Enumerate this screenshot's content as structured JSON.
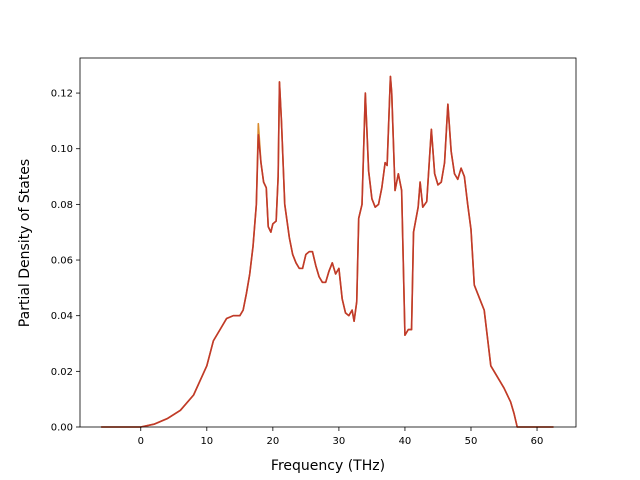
{
  "chart_data": {
    "type": "line",
    "x_label": "Frequency (THz)",
    "y_label": "Partial Density of States",
    "xlim": [
      -9.2,
      65.9
    ],
    "ylim": [
      0,
      0.1326
    ],
    "xticks": [
      0,
      10,
      20,
      30,
      40,
      50,
      60
    ],
    "yticks": [
      {
        "value": 0,
        "label": "0.00"
      },
      {
        "value": 0.02,
        "label": "0.02"
      },
      {
        "value": 0.04,
        "label": "0.04"
      },
      {
        "value": 0.06,
        "label": "0.06"
      },
      {
        "value": 0.08,
        "label": "0.08"
      },
      {
        "value": 0.1,
        "label": "0.10"
      },
      {
        "value": 0.12,
        "label": "0.12"
      }
    ],
    "x": [
      -6,
      0,
      2,
      4,
      6,
      8,
      10,
      11,
      12,
      13,
      14,
      15,
      15.5,
      16,
      16.5,
      17,
      17.5,
      17.8,
      18.2,
      18.6,
      19,
      19.3,
      19.7,
      20,
      20.5,
      20.8,
      21,
      21.3,
      21.8,
      22.5,
      23,
      23.5,
      24,
      24.5,
      25,
      25.5,
      26,
      26.5,
      27,
      27.5,
      28,
      28.5,
      29,
      29.5,
      30,
      30.5,
      31,
      31.5,
      32,
      32.3,
      32.7,
      33,
      33.5,
      34,
      34.5,
      35,
      35.5,
      36,
      36.5,
      37,
      37.3,
      37.8,
      38,
      38.5,
      39,
      39.5,
      40,
      40.5,
      41,
      41.3,
      42,
      42.3,
      42.7,
      43.3,
      44,
      44.5,
      45,
      45.5,
      46,
      46.5,
      47,
      47.5,
      48,
      48.5,
      49,
      49.5,
      50,
      50.5,
      51,
      51.5,
      52,
      52.5,
      53,
      54,
      55,
      56,
      56.5,
      57,
      62.5
    ],
    "series": [
      {
        "color": "#d98a2b",
        "values": [
          0,
          0,
          0.001,
          0.003,
          0.006,
          0.0115,
          0.022,
          0.031,
          0.035,
          0.039,
          0.04,
          0.04,
          0.042,
          0.048,
          0.055,
          0.065,
          0.08,
          0.109,
          0.095,
          0.088,
          0.086,
          0.072,
          0.07,
          0.073,
          0.074,
          0.09,
          0.124,
          0.11,
          0.08,
          0.068,
          0.062,
          0.059,
          0.057,
          0.057,
          0.062,
          0.063,
          0.063,
          0.058,
          0.054,
          0.052,
          0.052,
          0.056,
          0.059,
          0.055,
          0.057,
          0.046,
          0.041,
          0.04,
          0.042,
          0.038,
          0.045,
          0.075,
          0.08,
          0.12,
          0.092,
          0.082,
          0.079,
          0.08,
          0.086,
          0.095,
          0.094,
          0.126,
          0.12,
          0.085,
          0.091,
          0.085,
          0.033,
          0.035,
          0.035,
          0.07,
          0.079,
          0.088,
          0.079,
          0.081,
          0.107,
          0.091,
          0.087,
          0.088,
          0.095,
          0.116,
          0.099,
          0.091,
          0.089,
          0.093,
          0.09,
          0.08,
          0.071,
          0.051,
          0.048,
          0.045,
          0.042,
          0.032,
          0.022,
          0.018,
          0.014,
          0.009,
          0.005,
          0,
          0
        ]
      },
      {
        "color": "#c0392b",
        "values": [
          0,
          0,
          0.001,
          0.003,
          0.006,
          0.0115,
          0.022,
          0.031,
          0.035,
          0.039,
          0.04,
          0.04,
          0.042,
          0.048,
          0.055,
          0.065,
          0.08,
          0.105,
          0.095,
          0.088,
          0.086,
          0.072,
          0.07,
          0.073,
          0.074,
          0.09,
          0.124,
          0.11,
          0.08,
          0.068,
          0.062,
          0.059,
          0.057,
          0.057,
          0.062,
          0.063,
          0.063,
          0.058,
          0.054,
          0.052,
          0.052,
          0.056,
          0.059,
          0.055,
          0.057,
          0.046,
          0.041,
          0.04,
          0.042,
          0.038,
          0.045,
          0.075,
          0.08,
          0.12,
          0.092,
          0.082,
          0.079,
          0.08,
          0.086,
          0.095,
          0.094,
          0.126,
          0.12,
          0.085,
          0.091,
          0.085,
          0.033,
          0.035,
          0.035,
          0.07,
          0.079,
          0.088,
          0.079,
          0.081,
          0.107,
          0.091,
          0.087,
          0.088,
          0.095,
          0.116,
          0.099,
          0.091,
          0.089,
          0.093,
          0.09,
          0.08,
          0.071,
          0.051,
          0.048,
          0.045,
          0.042,
          0.032,
          0.022,
          0.018,
          0.014,
          0.009,
          0.005,
          0,
          0
        ]
      }
    ]
  }
}
